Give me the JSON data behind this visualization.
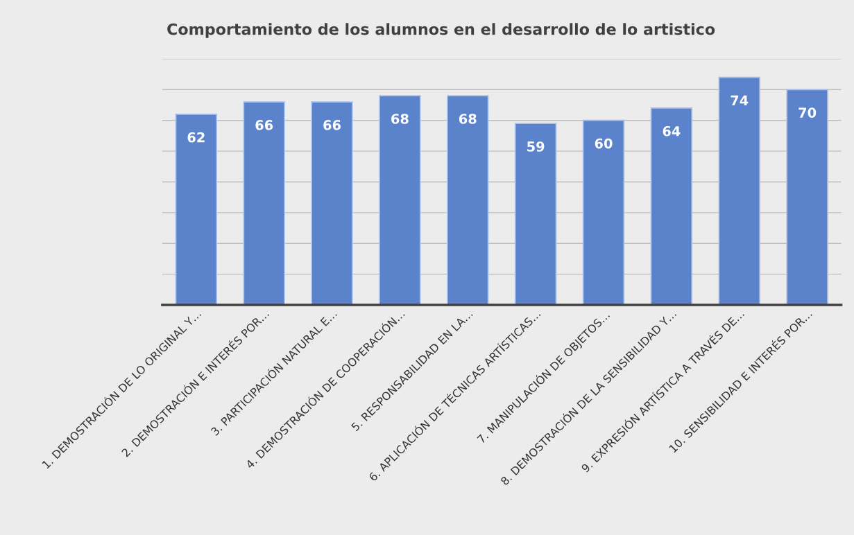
{
  "chart_data": {
    "type": "bar",
    "title": "Comportamiento de los alumnos en el desarrollo de lo artistico",
    "categories": [
      "1. DEMOSTRACIÓN DE LO ORIGINAL Y…",
      "2. DEMOSTRACIÓN E INTERÉS POR…",
      "3. PARTICIPACIÓN NATURAL E…",
      "4. DEMOSTRACIÓN DE COOPERACIÓN…",
      "5. RESPONSABILIDAD EN LA…",
      "6. APLICACIÓN DE TÉCNICAS ARTÍSTICAS…",
      "7. MANIPULACIÓN DE OBJETOS…",
      "8. DEMOSTRACIÓN DE LA SENSIBILIDAD Y…",
      "9. EXPRESIÓN ARTÍSTICA A TRAVÉS DE…",
      "10. SENSIBILIDAD E INTERÉS POR…"
    ],
    "values": [
      62,
      66,
      66,
      68,
      68,
      59,
      60,
      64,
      74,
      70
    ],
    "color": "#5b83cc",
    "ylim": [
      0,
      80
    ],
    "yticks": [
      {
        "value": 0,
        "label": null
      },
      {
        "value": 10,
        "label": null
      },
      {
        "value": 20,
        "label": null
      },
      {
        "value": 30,
        "label": null
      },
      {
        "value": 40,
        "label": null
      },
      {
        "value": 50,
        "label": null
      },
      {
        "value": 60,
        "label": null
      },
      {
        "value": 70,
        "label": null
      },
      {
        "value": 80,
        "label": null
      }
    ],
    "tick_labels": "x",
    "grid": "y",
    "data_labels": true
  }
}
